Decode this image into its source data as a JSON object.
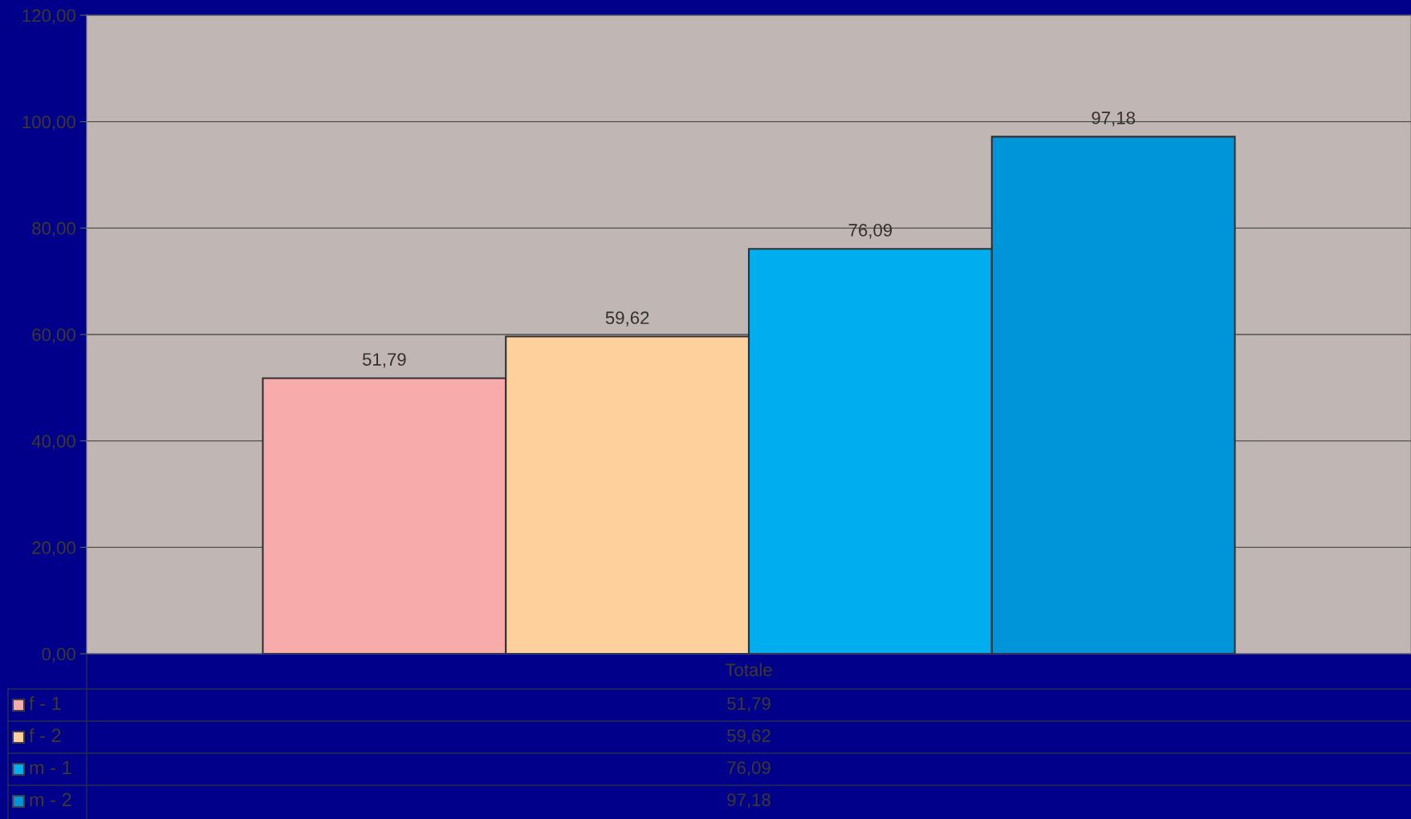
{
  "chart_data": {
    "type": "bar",
    "categories": [
      "Totale"
    ],
    "series": [
      {
        "name": "f - 1",
        "color": "#f7abab",
        "values": [
          51.79
        ],
        "value_labels": [
          "51,79"
        ]
      },
      {
        "name": "f - 2",
        "color": "#fed09c",
        "values": [
          59.62
        ],
        "value_labels": [
          "59,62"
        ]
      },
      {
        "name": "m - 1",
        "color": "#00adee",
        "values": [
          76.09
        ],
        "value_labels": [
          "76,09"
        ]
      },
      {
        "name": "m - 2",
        "color": "#0094d9",
        "values": [
          97.18
        ],
        "value_labels": [
          "97,18"
        ]
      }
    ],
    "ylim": [
      0,
      120
    ],
    "yticks": [
      {
        "value": 0,
        "label": "0,00"
      },
      {
        "value": 20,
        "label": "20,00"
      },
      {
        "value": 40,
        "label": "40,00"
      },
      {
        "value": 60,
        "label": "60,00"
      },
      {
        "value": 80,
        "label": "80,00"
      },
      {
        "value": 100,
        "label": "100,00"
      },
      {
        "value": 120,
        "label": "120,00"
      }
    ],
    "grid": "y",
    "legend": "bottom"
  }
}
